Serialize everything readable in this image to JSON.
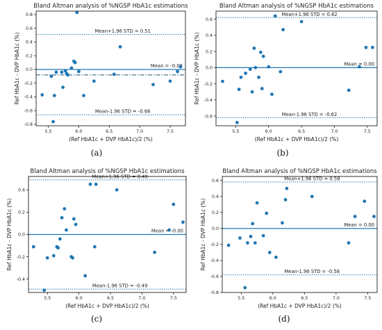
{
  "chart_data": [
    {
      "type": "scatter",
      "title": "Bland Altman analysis of %NGSP HbA1c estimations",
      "xlabel": "(Ref HbA1c + DVP HbA1c)/2 (%)",
      "ylabel": "Ref HbA1c - DVP HbA1c (%)",
      "caption": "(a)",
      "xlim": [
        5.3,
        7.75
      ],
      "ylim": [
        -0.82,
        0.85
      ],
      "xticks": [
        5.5,
        6.0,
        6.5,
        7.0,
        7.5
      ],
      "xtick_labels": [
        "5.5",
        "6.0",
        "6.5",
        "7.0",
        "7.5"
      ],
      "yticks": [
        -0.8,
        -0.6,
        -0.4,
        -0.2,
        0.0,
        0.2,
        0.4,
        0.6,
        0.8
      ],
      "ytick_labels": [
        "-0.8",
        "-0.6",
        "-0.4",
        "-0.2",
        "0.0",
        "0.2",
        "0.4",
        "0.6",
        "0.8"
      ],
      "zero_line": 0.0,
      "mean": -0.08,
      "upper_loa": 0.51,
      "lower_loa": -0.66,
      "labels": {
        "mean": "Mean = -0.08",
        "upper": "Mean+1.96 STD = 0.51",
        "lower": "Mean-1.96 STD = -0.66"
      },
      "grid": false,
      "points": [
        {
          "x": 5.4,
          "y": -0.37
        },
        {
          "x": 5.55,
          "y": -0.1
        },
        {
          "x": 5.58,
          "y": -0.76
        },
        {
          "x": 5.6,
          "y": -0.38
        },
        {
          "x": 5.63,
          "y": -0.04
        },
        {
          "x": 5.72,
          "y": -0.04
        },
        {
          "x": 5.74,
          "y": -0.26
        },
        {
          "x": 5.78,
          "y": -0.02
        },
        {
          "x": 5.8,
          "y": -0.06
        },
        {
          "x": 5.82,
          "y": -0.08
        },
        {
          "x": 5.88,
          "y": 0.02
        },
        {
          "x": 5.92,
          "y": 0.12
        },
        {
          "x": 5.94,
          "y": 0.1
        },
        {
          "x": 5.97,
          "y": 0.83
        },
        {
          "x": 6.0,
          "y": -0.03
        },
        {
          "x": 6.08,
          "y": -0.38
        },
        {
          "x": 6.25,
          "y": -0.17
        },
        {
          "x": 6.58,
          "y": -0.07
        },
        {
          "x": 6.68,
          "y": 0.33
        },
        {
          "x": 7.22,
          "y": -0.22
        },
        {
          "x": 7.5,
          "y": -0.17
        },
        {
          "x": 7.62,
          "y": -0.03
        },
        {
          "x": 7.67,
          "y": 0.04
        }
      ]
    },
    {
      "type": "scatter",
      "title": "Bland Altman analysis of %NGSP HbA1c estimations",
      "xlabel": "(Ref HbA1c + DVP HbA1c)/2 (%)",
      "ylabel": "Ref HbA1c - DVP HbA1c (%)",
      "caption": "(b)",
      "xlim": [
        5.2,
        7.65
      ],
      "ylim": [
        -0.72,
        0.7
      ],
      "xticks": [
        5.5,
        6.0,
        6.5,
        7.0,
        7.5
      ],
      "xtick_labels": [
        "5.5",
        "6.0",
        "6.5",
        "7.0",
        "7.5"
      ],
      "yticks": [
        -0.6,
        -0.4,
        -0.2,
        0.0,
        0.2,
        0.4,
        0.6
      ],
      "ytick_labels": [
        "-0.6",
        "-0.4",
        "-0.2",
        "0.0",
        "0.2",
        "0.4",
        "0.6"
      ],
      "zero_line": 0.0,
      "mean": 0.0,
      "upper_loa": 0.62,
      "lower_loa": -0.62,
      "labels": {
        "mean": "Mean = 0.00",
        "upper": "Mean+1.96 STD = 0.62",
        "lower": "Mean-1.96 STD = -0.62"
      },
      "grid": false,
      "points": [
        {
          "x": 5.3,
          "y": -0.17
        },
        {
          "x": 5.52,
          "y": -0.68
        },
        {
          "x": 5.55,
          "y": -0.27
        },
        {
          "x": 5.58,
          "y": -0.12
        },
        {
          "x": 5.65,
          "y": -0.07
        },
        {
          "x": 5.72,
          "y": -0.02
        },
        {
          "x": 5.75,
          "y": -0.3
        },
        {
          "x": 5.78,
          "y": 0.24
        },
        {
          "x": 5.8,
          "y": 0.0
        },
        {
          "x": 5.85,
          "y": -0.12
        },
        {
          "x": 5.88,
          "y": 0.19
        },
        {
          "x": 5.9,
          "y": -0.26
        },
        {
          "x": 5.92,
          "y": 0.14
        },
        {
          "x": 6.0,
          "y": 0.01
        },
        {
          "x": 6.05,
          "y": -0.33
        },
        {
          "x": 6.1,
          "y": 0.64
        },
        {
          "x": 6.18,
          "y": -0.05
        },
        {
          "x": 6.22,
          "y": 0.47
        },
        {
          "x": 6.5,
          "y": 0.57
        },
        {
          "x": 7.22,
          "y": -0.28
        },
        {
          "x": 7.38,
          "y": 0.01
        },
        {
          "x": 7.48,
          "y": 0.25
        },
        {
          "x": 7.58,
          "y": 0.25
        }
      ]
    },
    {
      "type": "scatter",
      "title": "Bland Altman analysis of %NGSP HbA1c estimations",
      "xlabel": "(Ref HbA1c + DVP HbA1c)/2 (%)",
      "ylabel": "Ref HbA1c - DVP HbA1c (%)",
      "caption": "(c)",
      "xlim": [
        5.2,
        7.7
      ],
      "ylim": [
        -0.52,
        0.52
      ],
      "xticks": [
        5.5,
        6.0,
        6.5,
        7.0,
        7.5
      ],
      "xtick_labels": [
        "5.5",
        "6.0",
        "6.5",
        "7.0",
        "7.5"
      ],
      "yticks": [
        -0.4,
        -0.2,
        0.0,
        0.2,
        0.4
      ],
      "ytick_labels": [
        "-0.4",
        "-0.2",
        "0.0",
        "0.2",
        "0.4"
      ],
      "zero_line": 0.0,
      "mean": 0.0,
      "upper_loa": 0.49,
      "lower_loa": -0.49,
      "labels": {
        "mean": "Mean = -0.00",
        "upper": "Mean+1.96 STD = 0.49",
        "lower": "Mean-1.96 STD = -0.49"
      },
      "grid": false,
      "points": [
        {
          "x": 5.28,
          "y": -0.11
        },
        {
          "x": 5.45,
          "y": -0.5
        },
        {
          "x": 5.5,
          "y": -0.21
        },
        {
          "x": 5.6,
          "y": -0.19
        },
        {
          "x": 5.65,
          "y": -0.11
        },
        {
          "x": 5.67,
          "y": -0.12
        },
        {
          "x": 5.7,
          "y": -0.04
        },
        {
          "x": 5.73,
          "y": 0.15
        },
        {
          "x": 5.77,
          "y": 0.23
        },
        {
          "x": 5.8,
          "y": 0.04
        },
        {
          "x": 5.88,
          "y": -0.2
        },
        {
          "x": 5.9,
          "y": -0.21
        },
        {
          "x": 5.92,
          "y": 0.14
        },
        {
          "x": 5.95,
          "y": 0.09
        },
        {
          "x": 6.1,
          "y": -0.37
        },
        {
          "x": 6.18,
          "y": 0.45
        },
        {
          "x": 6.27,
          "y": 0.45
        },
        {
          "x": 6.25,
          "y": -0.11
        },
        {
          "x": 6.6,
          "y": 0.4
        },
        {
          "x": 7.2,
          "y": -0.16
        },
        {
          "x": 7.43,
          "y": 0.04
        },
        {
          "x": 7.5,
          "y": 0.27
        },
        {
          "x": 7.65,
          "y": 0.11
        }
      ]
    },
    {
      "type": "scatter",
      "title": "Bland Altman analysis of %NGSP HbA1c estimations",
      "xlabel": "(Ref HbA1c + DVP HbA1c)/2 (%)",
      "ylabel": "Ref HbA1c - DVP HbA1c (%)",
      "caption": "(d)",
      "xlim": [
        5.2,
        7.65
      ],
      "ylim": [
        -0.8,
        0.65
      ],
      "xticks": [
        5.5,
        6.0,
        6.5,
        7.0,
        7.5
      ],
      "xtick_labels": [
        "5.5",
        "6.0",
        "6.5",
        "7.0",
        "7.5"
      ],
      "yticks": [
        -0.8,
        -0.6,
        -0.4,
        -0.2,
        0.0,
        0.2,
        0.4,
        0.6
      ],
      "ytick_labels": [
        "-0.8",
        "-0.6",
        "-0.4",
        "-0.2",
        "0.0",
        "0.2",
        "0.4",
        "0.6"
      ],
      "zero_line": 0.0,
      "mean": 0.0,
      "upper_loa": 0.58,
      "lower_loa": -0.58,
      "labels": {
        "mean": "Mean = 0.00",
        "upper": "Mean+1.96 STD = 0.58",
        "lower": "Mean-1.96 STD = -0.58"
      },
      "grid": false,
      "points": [
        {
          "x": 5.3,
          "y": -0.21
        },
        {
          "x": 5.48,
          "y": -0.12
        },
        {
          "x": 5.56,
          "y": -0.74
        },
        {
          "x": 5.6,
          "y": -0.18
        },
        {
          "x": 5.65,
          "y": -0.1
        },
        {
          "x": 5.68,
          "y": 0.06
        },
        {
          "x": 5.72,
          "y": -0.18
        },
        {
          "x": 5.75,
          "y": 0.32
        },
        {
          "x": 5.85,
          "y": -0.09
        },
        {
          "x": 5.9,
          "y": 0.19
        },
        {
          "x": 5.95,
          "y": -0.3
        },
        {
          "x": 6.05,
          "y": -0.36
        },
        {
          "x": 6.15,
          "y": 0.07
        },
        {
          "x": 6.2,
          "y": 0.36
        },
        {
          "x": 6.22,
          "y": 0.5
        },
        {
          "x": 6.62,
          "y": 0.4
        },
        {
          "x": 7.2,
          "y": -0.18
        },
        {
          "x": 7.3,
          "y": 0.15
        },
        {
          "x": 7.45,
          "y": 0.34
        },
        {
          "x": 7.6,
          "y": 0.15
        }
      ]
    }
  ]
}
